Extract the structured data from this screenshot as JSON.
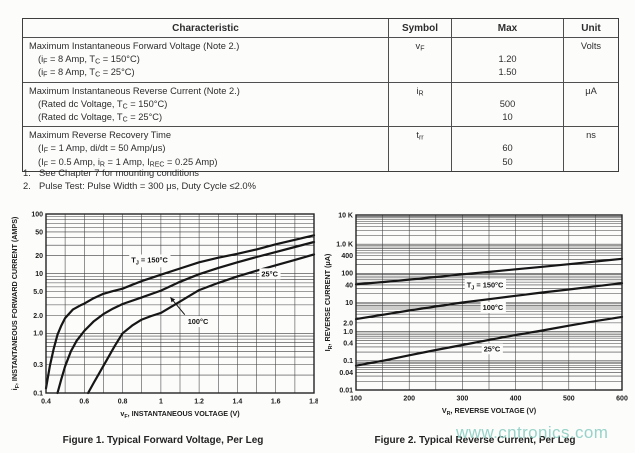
{
  "table": {
    "headers": [
      "Characteristic",
      "Symbol",
      "Max",
      "Unit"
    ],
    "rows": [
      {
        "symbol": "v~F~",
        "unit": "Volts",
        "lines": [
          {
            "text": "Maximum Instantaneous Forward Voltage (Note 2.)",
            "max": "",
            "indent": false
          },
          {
            "text": "(i~F~ = 8 Amp, T~C~ = 150°C)",
            "max": "1.20",
            "indent": true
          },
          {
            "text": "(i~F~ = 8 Amp, T~C~ = 25°C)",
            "max": "1.50",
            "indent": true
          }
        ]
      },
      {
        "symbol": "i~R~",
        "unit": "μA",
        "lines": [
          {
            "text": "Maximum Instantaneous Reverse Current (Note 2.)",
            "max": "",
            "indent": false
          },
          {
            "text": "(Rated dc Voltage, T~C~ = 150°C)",
            "max": "500",
            "indent": true
          },
          {
            "text": "(Rated dc Voltage, T~C~ = 25°C)",
            "max": "10",
            "indent": true
          }
        ]
      },
      {
        "symbol": "t~rr~",
        "unit": "ns",
        "lines": [
          {
            "text": "Maximum Reverse Recovery Time",
            "max": "",
            "indent": false
          },
          {
            "text": "(I~F~ = 1 Amp, di/dt = 50 Amp/μs)",
            "max": "60",
            "indent": true
          },
          {
            "text": "(I~F~ = 0.5 Amp, i~R~ = 1 Amp, I~REC~ = 0.25 Amp)",
            "max": "50",
            "indent": true
          }
        ]
      }
    ]
  },
  "notes": [
    {
      "num": "1.",
      "text": "See Chapter 7 for mounting conditions"
    },
    {
      "num": "2.",
      "text": "Pulse Test: Pulse Width = 300 μs, Duty Cycle ≤2.0%"
    }
  ],
  "watermark": {
    "text": "www.cntronics.com",
    "color": "#8fd0c5"
  },
  "chart_data": [
    {
      "type": "line",
      "title": "Figure 1. Typical Forward Voltage, Per Leg",
      "xlabel": "v~F~, INSTANTANEOUS VOLTAGE (V)",
      "ylabel": "i~F~, INSTANTANEOUS FORWARD CURRENT (AMPS)",
      "xscale": "linear",
      "yscale": "log",
      "xlim": [
        0.4,
        1.8
      ],
      "ylim": [
        0.1,
        100
      ],
      "x_minor_step": 0.1,
      "grid": "on",
      "legend": "inline-labels",
      "x_ticks": [
        {
          "v": 0.4,
          "label": "0.4"
        },
        {
          "v": 0.6,
          "label": "0.6"
        },
        {
          "v": 0.8,
          "label": "0.8"
        },
        {
          "v": 1.0,
          "label": "1"
        },
        {
          "v": 1.2,
          "label": "1.2"
        },
        {
          "v": 1.4,
          "label": "1.4"
        },
        {
          "v": 1.6,
          "label": "1.6"
        },
        {
          "v": 1.8,
          "label": "1.8"
        }
      ],
      "y_ticks": [
        {
          "v": 100,
          "label": "100"
        },
        {
          "v": 50,
          "label": "50"
        },
        {
          "v": 20,
          "label": "20"
        },
        {
          "v": 10,
          "label": "10"
        },
        {
          "v": 5,
          "label": "5.0"
        },
        {
          "v": 2,
          "label": "2.0"
        },
        {
          "v": 1,
          "label": "1.0"
        },
        {
          "v": 0.3,
          "label": "0.3"
        },
        {
          "v": 0.1,
          "label": "0.1"
        }
      ],
      "series": [
        {
          "name": "TJ = 150°C",
          "points": [
            [
              0.4,
              0.12
            ],
            [
              0.42,
              0.28
            ],
            [
              0.44,
              0.55
            ],
            [
              0.46,
              0.95
            ],
            [
              0.48,
              1.35
            ],
            [
              0.5,
              1.8
            ],
            [
              0.54,
              2.5
            ],
            [
              0.58,
              2.95
            ],
            [
              0.6,
              3.15
            ],
            [
              0.65,
              3.9
            ],
            [
              0.7,
              4.6
            ],
            [
              0.75,
              5.1
            ],
            [
              0.8,
              5.6
            ],
            [
              0.85,
              6.5
            ],
            [
              0.9,
              7.5
            ],
            [
              0.95,
              8.5
            ],
            [
              1.0,
              9.6
            ],
            [
              1.1,
              12.2
            ],
            [
              1.2,
              15.5
            ],
            [
              1.3,
              18.5
            ],
            [
              1.4,
              21.5
            ],
            [
              1.5,
              25.5
            ],
            [
              1.6,
              31
            ],
            [
              1.7,
              37
            ],
            [
              1.8,
              44
            ]
          ]
        },
        {
          "name": "100°C",
          "points": [
            [
              0.46,
              0.1
            ],
            [
              0.48,
              0.17
            ],
            [
              0.5,
              0.28
            ],
            [
              0.53,
              0.5
            ],
            [
              0.56,
              0.75
            ],
            [
              0.6,
              1.1
            ],
            [
              0.65,
              1.6
            ],
            [
              0.7,
              2.1
            ],
            [
              0.75,
              2.6
            ],
            [
              0.8,
              3.1
            ],
            [
              0.9,
              4.0
            ],
            [
              1.0,
              5.2
            ],
            [
              1.1,
              7.3
            ],
            [
              1.2,
              9.8
            ],
            [
              1.3,
              12.5
            ],
            [
              1.4,
              15.5
            ],
            [
              1.5,
              19
            ],
            [
              1.6,
              23
            ],
            [
              1.7,
              28
            ],
            [
              1.8,
              34
            ]
          ]
        },
        {
          "name": "25°C",
          "points": [
            [
              0.62,
              0.1
            ],
            [
              0.65,
              0.15
            ],
            [
              0.68,
              0.22
            ],
            [
              0.72,
              0.37
            ],
            [
              0.76,
              0.62
            ],
            [
              0.8,
              1.0
            ],
            [
              0.85,
              1.35
            ],
            [
              0.9,
              1.7
            ],
            [
              0.95,
              1.95
            ],
            [
              1.0,
              2.2
            ],
            [
              1.1,
              3.4
            ],
            [
              1.2,
              5.3
            ],
            [
              1.3,
              7.0
            ],
            [
              1.4,
              9.0
            ],
            [
              1.5,
              11.2
            ],
            [
              1.6,
              13.8
            ],
            [
              1.7,
              17
            ],
            [
              1.8,
              21
            ]
          ]
        }
      ],
      "annotations": [
        {
          "text": "T~J~ = 150°C",
          "x": 0.845,
          "y": 17
        },
        {
          "text": "25°C",
          "x": 1.525,
          "y": 10
        },
        {
          "text": "100°C",
          "x": 1.14,
          "y": 1.58,
          "arrow": {
            "from": [
              1.125,
              2.05
            ],
            "to": [
              1.05,
              4.0
            ]
          }
        }
      ]
    },
    {
      "type": "line",
      "title": "Figure 2. Typical Reverse Current, Per Leg",
      "xlabel": "V~R~, REVERSE VOLTAGE (V)",
      "ylabel": "I~R~, REVERSE CURRENT (μA)",
      "xscale": "linear",
      "yscale": "log",
      "xlim": [
        100,
        600
      ],
      "ylim": [
        0.01,
        10000
      ],
      "x_minor_step": 50,
      "grid": "on",
      "legend": "inline-labels",
      "x_ticks": [
        {
          "v": 100,
          "label": "100"
        },
        {
          "v": 200,
          "label": "200"
        },
        {
          "v": 300,
          "label": "300"
        },
        {
          "v": 400,
          "label": "400"
        },
        {
          "v": 500,
          "label": "500"
        },
        {
          "v": 600,
          "label": "600"
        }
      ],
      "y_ticks": [
        {
          "v": 10000,
          "label": "10 K"
        },
        {
          "v": 1000,
          "label": "1.0 K"
        },
        {
          "v": 400,
          "label": "400"
        },
        {
          "v": 100,
          "label": "100"
        },
        {
          "v": 40,
          "label": "40"
        },
        {
          "v": 10,
          "label": "10"
        },
        {
          "v": 2,
          "label": "2.0"
        },
        {
          "v": 1,
          "label": "1.0"
        },
        {
          "v": 0.4,
          "label": "0.4"
        },
        {
          "v": 0.1,
          "label": "0.1"
        },
        {
          "v": 0.04,
          "label": "0.04"
        },
        {
          "v": 0.01,
          "label": "0.01"
        }
      ],
      "series": [
        {
          "name": "TJ = 150°C",
          "points": [
            [
              100,
              42
            ],
            [
              150,
              50
            ],
            [
              200,
              61
            ],
            [
              250,
              75
            ],
            [
              300,
              93
            ],
            [
              350,
              112
            ],
            [
              400,
              138
            ],
            [
              450,
              168
            ],
            [
              500,
              205
            ],
            [
              550,
              255
            ],
            [
              600,
              315
            ]
          ]
        },
        {
          "name": "100°C",
          "points": [
            [
              100,
              2.7
            ],
            [
              150,
              3.8
            ],
            [
              200,
              5.3
            ],
            [
              250,
              7.3
            ],
            [
              300,
              10
            ],
            [
              350,
              13
            ],
            [
              400,
              17
            ],
            [
              450,
              22
            ],
            [
              500,
              28
            ],
            [
              550,
              36
            ],
            [
              600,
              46
            ]
          ]
        },
        {
          "name": "25°C",
          "points": [
            [
              100,
              0.068
            ],
            [
              150,
              0.1
            ],
            [
              200,
              0.155
            ],
            [
              250,
              0.235
            ],
            [
              300,
              0.35
            ],
            [
              350,
              0.52
            ],
            [
              400,
              0.76
            ],
            [
              450,
              1.1
            ],
            [
              500,
              1.6
            ],
            [
              550,
              2.3
            ],
            [
              600,
              3.2
            ]
          ]
        }
      ],
      "annotations": [
        {
          "text": "T~J~ = 150°C",
          "x": 308,
          "y": 40
        },
        {
          "text": "100°C",
          "x": 338,
          "y": 6.8
        },
        {
          "text": "25°C",
          "x": 340,
          "y": 0.26
        }
      ]
    }
  ]
}
